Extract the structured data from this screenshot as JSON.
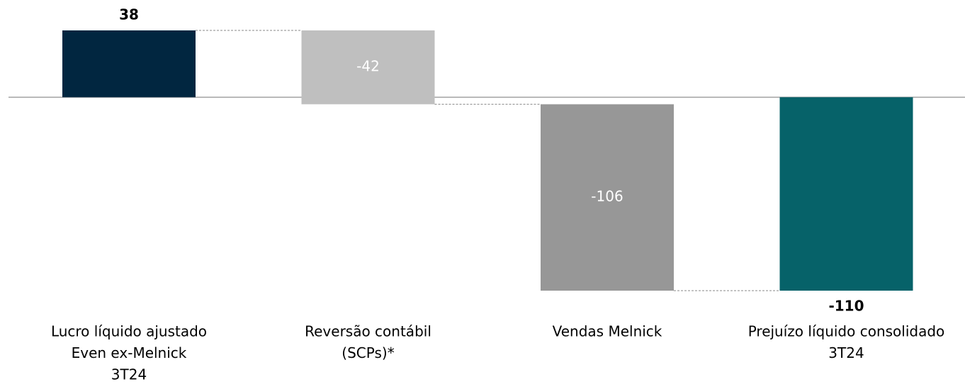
{
  "chart_data": {
    "type": "waterfall",
    "categories": [
      [
        "Lucro líquido ajustado",
        "Even ex-Melnick",
        "3T24"
      ],
      [
        "Reversão contábil",
        "(SCPs)*"
      ],
      [
        "Vendas Melnick"
      ],
      [
        "Prejuízo líquido consolidado",
        "3T24"
      ]
    ],
    "values": [
      38,
      -42,
      -106,
      -110
    ],
    "measure": [
      "absolute",
      "relative",
      "relative",
      "total"
    ],
    "colors": [
      "#012640",
      "#bfbfbf",
      "#979797",
      "#066269"
    ]
  }
}
